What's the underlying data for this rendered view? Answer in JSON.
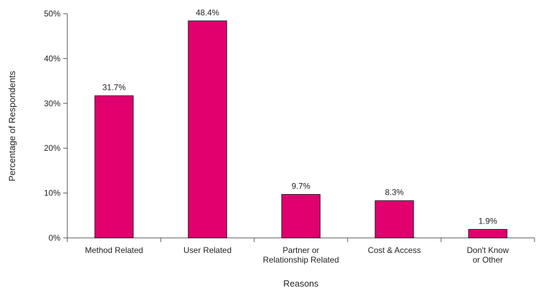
{
  "chart_data": {
    "type": "bar",
    "title": "",
    "xlabel": "Reasons",
    "ylabel": "Percentage of Respondents",
    "categories": [
      [
        "Method Related"
      ],
      [
        "User Related"
      ],
      [
        "Partner or",
        "Relationship Related"
      ],
      [
        "Cost & Access"
      ],
      [
        "Don't Know",
        "or Other"
      ]
    ],
    "values": [
      31.7,
      48.4,
      9.7,
      8.3,
      1.9
    ],
    "value_labels": [
      "31.7%",
      "48.4%",
      "9.7%",
      "8.3%",
      "1.9%"
    ],
    "y_ticks": [
      0,
      10,
      20,
      30,
      40,
      50
    ],
    "y_tick_labels": [
      "0%",
      "10%",
      "20%",
      "30%",
      "40%",
      "50%"
    ],
    "ylim": [
      0,
      50
    ],
    "grid": false,
    "legend": "none",
    "bar_color": "#e0006e",
    "bar_stroke": "#000000",
    "axis_color": "#555555"
  }
}
